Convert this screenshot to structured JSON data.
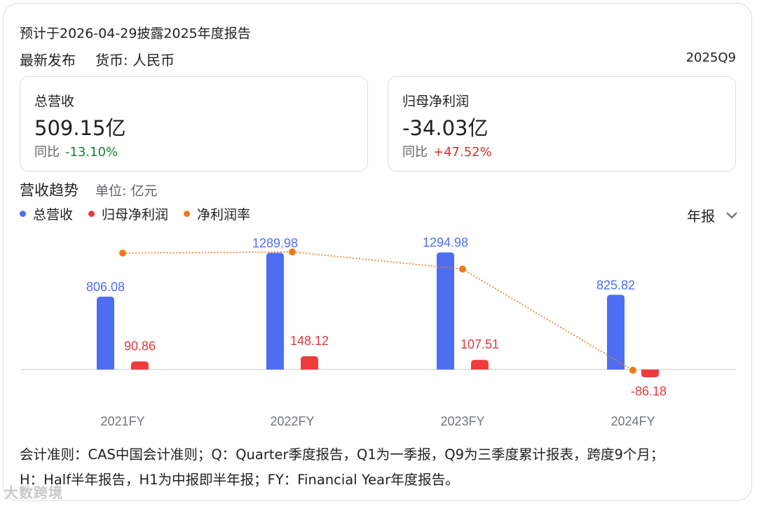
{
  "header": {
    "notice": "预计于2026-04-29披露2025年度报告",
    "latest_label": "最新发布",
    "currency": "货币: 人民币",
    "period": "2025Q9"
  },
  "metrics": [
    {
      "label": "总营收",
      "value": "509.15亿",
      "yoy_label": "同比",
      "yoy": "-13.10%",
      "yoy_color": "#188038"
    },
    {
      "label": "归母净利润",
      "value": "-34.03亿",
      "yoy_label": "同比",
      "yoy": "+47.52%",
      "yoy_color": "#d93025"
    }
  ],
  "trend": {
    "title": "营收趋势",
    "unit": "单位: 亿元",
    "period_select": "年报",
    "legend": [
      {
        "label": "总营收",
        "color": "#4e6ef2"
      },
      {
        "label": "归母净利润",
        "color": "#f03b3b"
      },
      {
        "label": "净利润率",
        "color": "#f07a1a"
      }
    ]
  },
  "chart_data": {
    "type": "bar",
    "categories": [
      "2021FY",
      "2022FY",
      "2023FY",
      "2024FY"
    ],
    "series": [
      {
        "name": "总营收",
        "values": [
          806.08,
          1289.98,
          1294.98,
          825.82
        ],
        "color": "#4e6ef2"
      },
      {
        "name": "归母净利润",
        "values": [
          90.86,
          148.12,
          107.51,
          -86.18
        ],
        "color": "#f03b3b"
      },
      {
        "name": "净利润率",
        "values": [
          11.27,
          11.48,
          8.3,
          -10.44
        ],
        "color": "#f07a1a",
        "kind": "line"
      }
    ],
    "value_labels": [
      [
        "806.08",
        "1289.98",
        "1294.98",
        "825.82"
      ],
      [
        "90.86",
        "148.12",
        "107.51",
        "-86.18"
      ]
    ],
    "grid": false
  },
  "footnote": {
    "line1": "会计准则：CAS中国会计准则；Q：Quarter季度报告，Q1为一季报，Q9为三季度累计报表，跨度9个月；",
    "line2": "H：Half半年报告，H1为中报即半年报；FY：Financial Year年度报告。"
  },
  "watermark": "大数跨境"
}
